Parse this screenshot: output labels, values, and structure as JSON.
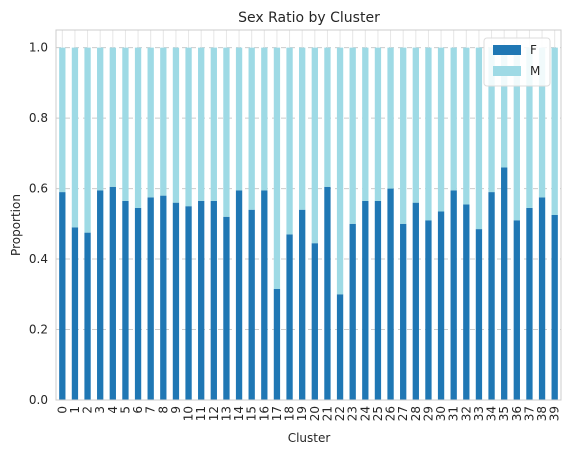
{
  "chart_data": {
    "type": "bar",
    "stacked": true,
    "title": "Sex Ratio by Cluster",
    "xlabel": "Cluster",
    "ylabel": "Proportion",
    "ylim": [
      0,
      1.05
    ],
    "yticks": [
      "0.0",
      "0.2",
      "0.4",
      "0.6",
      "0.8",
      "1.0"
    ],
    "grid": "horizontal dashed",
    "legend_position": "top-right",
    "categories": [
      "0",
      "1",
      "2",
      "3",
      "4",
      "5",
      "6",
      "7",
      "8",
      "9",
      "10",
      "11",
      "12",
      "13",
      "14",
      "15",
      "16",
      "17",
      "18",
      "19",
      "20",
      "21",
      "22",
      "23",
      "24",
      "25",
      "26",
      "27",
      "28",
      "29",
      "30",
      "31",
      "32",
      "33",
      "34",
      "35",
      "36",
      "37",
      "38",
      "39"
    ],
    "series": [
      {
        "name": "F",
        "color": "#1f77b4",
        "values": [
          0.59,
          0.49,
          0.475,
          0.595,
          0.605,
          0.565,
          0.545,
          0.575,
          0.58,
          0.56,
          0.55,
          0.565,
          0.565,
          0.52,
          0.595,
          0.54,
          0.595,
          0.315,
          0.47,
          0.54,
          0.445,
          0.605,
          0.3,
          0.5,
          0.565,
          0.565,
          0.6,
          0.5,
          0.56,
          0.51,
          0.535,
          0.595,
          0.555,
          0.485,
          0.59,
          0.66,
          0.51,
          0.545,
          0.575,
          0.525
        ]
      },
      {
        "name": "M",
        "color": "#9edae5",
        "values": [
          0.41,
          0.51,
          0.525,
          0.405,
          0.395,
          0.435,
          0.455,
          0.425,
          0.42,
          0.44,
          0.45,
          0.435,
          0.435,
          0.48,
          0.405,
          0.46,
          0.405,
          0.685,
          0.53,
          0.46,
          0.555,
          0.395,
          0.7,
          0.5,
          0.435,
          0.435,
          0.4,
          0.5,
          0.44,
          0.49,
          0.465,
          0.405,
          0.445,
          0.515,
          0.41,
          0.34,
          0.49,
          0.455,
          0.425,
          0.475
        ]
      }
    ]
  }
}
